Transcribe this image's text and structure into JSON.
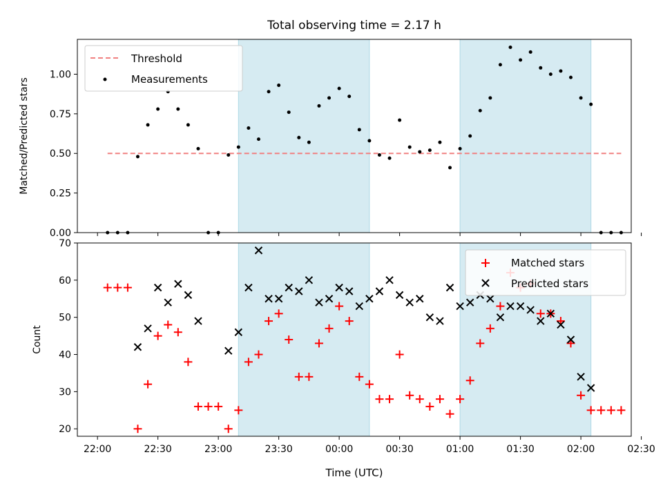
{
  "figure": {
    "title": "Total observing time = 2.17 h",
    "xlabel": "Time (UTC)",
    "x_tick_labels": [
      "22:00",
      "22:30",
      "23:00",
      "23:30",
      "00:00",
      "00:30",
      "01:00",
      "01:30",
      "02:00",
      "02:30"
    ]
  },
  "colors": {
    "shade": "#add8e6",
    "threshold": "#f08080",
    "matched": "#ff0000",
    "predicted": "#000000",
    "measurement": "#000000"
  },
  "chart_data": [
    {
      "type": "scatter",
      "ylabel": "Matched/Predicted stars",
      "y_ticks": [
        0.0,
        0.25,
        0.5,
        0.75,
        1.0
      ],
      "y_tick_labels": [
        "0.00",
        "0.25",
        "0.50",
        "0.75",
        "1.00"
      ],
      "xlim_minutes_from_2200": [
        -10,
        265
      ],
      "ylim": [
        0.0,
        1.22
      ],
      "grid": false,
      "legend": "top-left",
      "legend_entries": [
        "Threshold",
        "Measurements"
      ],
      "shaded_intervals_utc": [
        [
          "23:10",
          "00:15"
        ],
        [
          "01:00",
          "02:05"
        ]
      ],
      "threshold": {
        "name": "Threshold",
        "y": 0.5,
        "x_range_utc": [
          "22:05",
          "02:20"
        ],
        "style": "dashed"
      },
      "series": [
        {
          "name": "Measurements",
          "x_utc": [
            "22:05",
            "22:10",
            "22:15",
            "22:20",
            "22:25",
            "22:30",
            "22:35",
            "22:40",
            "22:45",
            "22:50",
            "22:55",
            "23:00",
            "23:05",
            "23:10",
            "23:15",
            "23:20",
            "23:25",
            "23:30",
            "23:35",
            "23:40",
            "23:45",
            "23:50",
            "23:55",
            "00:00",
            "00:05",
            "00:10",
            "00:15",
            "00:20",
            "00:25",
            "00:30",
            "00:35",
            "00:40",
            "00:45",
            "00:50",
            "00:55",
            "01:00",
            "01:05",
            "01:10",
            "01:15",
            "01:20",
            "01:25",
            "01:30",
            "01:35",
            "01:40",
            "01:45",
            "01:50",
            "01:55",
            "02:00",
            "02:05",
            "02:10",
            "02:15",
            "02:20"
          ],
          "y": [
            0.0,
            0.0,
            0.0,
            0.48,
            0.68,
            0.78,
            0.89,
            0.78,
            0.68,
            0.53,
            0.0,
            0.0,
            0.49,
            0.54,
            0.66,
            0.59,
            0.89,
            0.93,
            0.76,
            0.6,
            0.57,
            0.8,
            0.85,
            0.91,
            0.86,
            0.65,
            0.58,
            0.49,
            0.47,
            0.71,
            0.54,
            0.51,
            0.52,
            0.57,
            0.41,
            0.53,
            0.61,
            0.77,
            0.85,
            1.06,
            1.17,
            1.09,
            1.14,
            1.04,
            1.0,
            1.02,
            0.98,
            0.85,
            0.81,
            0.0,
            0.0,
            0.0
          ]
        }
      ]
    },
    {
      "type": "scatter",
      "ylabel": "Count",
      "y_ticks": [
        20,
        30,
        40,
        50,
        60,
        70
      ],
      "y_tick_labels": [
        "20",
        "30",
        "40",
        "50",
        "60",
        "70"
      ],
      "xlim_minutes_from_2200": [
        -10,
        265
      ],
      "ylim": [
        18,
        70
      ],
      "grid": false,
      "legend": "top-right",
      "legend_entries": [
        "Matched stars",
        "Predicted stars"
      ],
      "shaded_intervals_utc": [
        [
          "23:10",
          "00:15"
        ],
        [
          "01:00",
          "02:05"
        ]
      ],
      "series": [
        {
          "name": "Matched stars",
          "marker": "+",
          "x_utc": [
            "22:05",
            "22:10",
            "22:15",
            "22:20",
            "22:25",
            "22:30",
            "22:35",
            "22:40",
            "22:45",
            "22:50",
            "22:55",
            "23:00",
            "23:05",
            "23:10",
            "23:15",
            "23:20",
            "23:25",
            "23:30",
            "23:35",
            "23:40",
            "23:45",
            "23:50",
            "23:55",
            "00:00",
            "00:05",
            "00:10",
            "00:15",
            "00:20",
            "00:25",
            "00:30",
            "00:35",
            "00:40",
            "00:45",
            "00:50",
            "00:55",
            "01:00",
            "01:05",
            "01:10",
            "01:15",
            "01:20",
            "01:25",
            "01:30",
            "01:35",
            "01:40",
            "01:45",
            "01:50",
            "01:55",
            "02:00",
            "02:05",
            "02:10",
            "02:15",
            "02:20"
          ],
          "y": [
            58,
            58,
            58,
            20,
            32,
            45,
            48,
            46,
            38,
            26,
            26,
            26,
            20,
            25,
            38,
            40,
            49,
            51,
            44,
            34,
            34,
            43,
            47,
            53,
            49,
            34,
            32,
            28,
            28,
            40,
            29,
            28,
            26,
            28,
            24,
            28,
            33,
            43,
            47,
            53,
            62,
            58,
            59,
            51,
            51,
            49,
            43,
            29,
            25,
            25,
            25,
            25
          ]
        },
        {
          "name": "Predicted stars",
          "marker": "x",
          "x_utc": [
            "22:20",
            "22:25",
            "22:30",
            "22:35",
            "22:40",
            "22:45",
            "22:50",
            "23:05",
            "23:10",
            "23:15",
            "23:20",
            "23:25",
            "23:30",
            "23:35",
            "23:40",
            "23:45",
            "23:50",
            "23:55",
            "00:00",
            "00:05",
            "00:10",
            "00:15",
            "00:20",
            "00:25",
            "00:30",
            "00:35",
            "00:40",
            "00:45",
            "00:50",
            "00:55",
            "01:00",
            "01:05",
            "01:10",
            "01:15",
            "01:20",
            "01:25",
            "01:30",
            "01:35",
            "01:40",
            "01:45",
            "01:50",
            "01:55",
            "02:00",
            "02:05"
          ],
          "y": [
            42,
            47,
            58,
            54,
            59,
            56,
            49,
            41,
            46,
            58,
            68,
            55,
            55,
            58,
            57,
            60,
            54,
            55,
            58,
            57,
            53,
            55,
            57,
            60,
            56,
            54,
            55,
            50,
            49,
            58,
            53,
            54,
            56,
            55,
            50,
            53,
            53,
            52,
            49,
            51,
            48,
            44,
            34,
            31
          ]
        }
      ]
    }
  ]
}
